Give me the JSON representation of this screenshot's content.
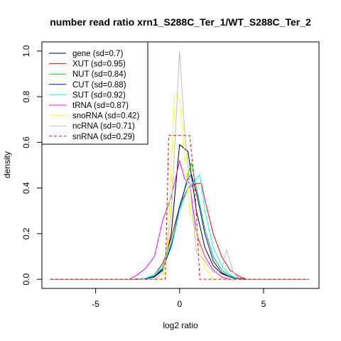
{
  "chart_data": {
    "type": "line",
    "title": "number read ratio xrn1_S288C_Ter_1/WT_S288C_Ter_2",
    "xlabel": "log2 ratio",
    "ylabel": "density",
    "xlim": [
      -8.2,
      8.3
    ],
    "ylim": [
      -0.04,
      1.04
    ],
    "xticks": [
      -5,
      0,
      5
    ],
    "yticks": [
      0.0,
      0.2,
      0.4,
      0.6,
      0.8,
      1.0
    ],
    "xtick_labels": [
      "-5",
      "0",
      "5"
    ],
    "ytick_labels": [
      "0.0",
      "0.2",
      "0.4",
      "0.6",
      "0.8",
      "1.0"
    ],
    "grid": false,
    "legend_position": "top-left",
    "series": [
      {
        "name": "gene (sd=0.7)",
        "color": "#000000",
        "dash": "solid",
        "x": [
          -7.7,
          -3.0,
          -2.0,
          -1.5,
          -1.0,
          -0.5,
          0.0,
          0.5,
          1.0,
          1.5,
          2.0,
          2.5,
          3.0,
          4.0,
          7.7
        ],
        "y": [
          0.0,
          0.0,
          0.003,
          0.01,
          0.04,
          0.2,
          0.59,
          0.56,
          0.3,
          0.14,
          0.06,
          0.025,
          0.01,
          0.0,
          0.0
        ]
      },
      {
        "name": "XUT (sd=0.95)",
        "color": "#ff0000",
        "dash": "solid",
        "x": [
          -7.7,
          -2.5,
          -2.0,
          -1.5,
          -1.0,
          -0.5,
          0.0,
          0.5,
          1.0,
          1.3,
          1.5,
          2.0,
          2.5,
          3.0,
          3.5,
          4.0,
          7.7
        ],
        "y": [
          0.0,
          0.0,
          0.005,
          0.02,
          0.07,
          0.18,
          0.32,
          0.4,
          0.42,
          0.42,
          0.35,
          0.2,
          0.1,
          0.04,
          0.015,
          0.0,
          0.0
        ]
      },
      {
        "name": "NUT (sd=0.84)",
        "color": "#00cd00",
        "dash": "solid",
        "x": [
          -7.7,
          -2.5,
          -2.0,
          -1.5,
          -1.0,
          -0.5,
          0.0,
          0.5,
          0.7,
          1.0,
          1.5,
          2.0,
          2.5,
          3.0,
          3.5,
          7.7
        ],
        "y": [
          0.0,
          0.0,
          0.005,
          0.015,
          0.05,
          0.14,
          0.3,
          0.46,
          0.51,
          0.4,
          0.22,
          0.1,
          0.04,
          0.015,
          0.0,
          0.0
        ]
      },
      {
        "name": "CUT (sd=0.88)",
        "color": "#0000ff",
        "dash": "solid",
        "x": [
          -7.7,
          -2.5,
          -2.0,
          -1.5,
          -1.0,
          -0.5,
          0.0,
          0.5,
          0.7,
          1.0,
          1.5,
          2.0,
          2.5,
          3.0,
          3.5,
          7.7
        ],
        "y": [
          0.0,
          0.0,
          0.003,
          0.012,
          0.045,
          0.15,
          0.32,
          0.44,
          0.46,
          0.38,
          0.2,
          0.08,
          0.03,
          0.01,
          0.0,
          0.0
        ]
      },
      {
        "name": "SUT (sd=0.92)",
        "color": "#00ffff",
        "dash": "solid",
        "x": [
          -7.7,
          -2.5,
          -2.0,
          -1.5,
          -1.0,
          -0.5,
          0.0,
          0.5,
          1.0,
          1.2,
          1.5,
          2.0,
          2.5,
          3.0,
          3.5,
          7.7
        ],
        "y": [
          0.0,
          0.0,
          0.005,
          0.02,
          0.06,
          0.16,
          0.3,
          0.4,
          0.44,
          0.46,
          0.3,
          0.14,
          0.06,
          0.02,
          0.0,
          0.0
        ]
      },
      {
        "name": "tRNA (sd=0.87)",
        "color": "#ff00ff",
        "dash": "solid",
        "x": [
          -7.7,
          -3.0,
          -2.5,
          -2.0,
          -1.5,
          -1.0,
          -0.5,
          0.0,
          0.3,
          0.6,
          1.0,
          1.5,
          2.0,
          2.5,
          3.0,
          7.7
        ],
        "y": [
          0.0,
          0.0,
          0.02,
          0.05,
          0.1,
          0.26,
          0.36,
          0.52,
          0.44,
          0.42,
          0.2,
          0.1,
          0.04,
          0.01,
          0.0,
          0.0
        ]
      },
      {
        "name": "snoRNA (sd=0.42)",
        "color": "#ffff00",
        "dash": "solid",
        "x": [
          -7.7,
          -1.0,
          -0.7,
          -0.3,
          0.0,
          0.3,
          0.6,
          1.0,
          1.5,
          2.0,
          7.7
        ],
        "y": [
          0.0,
          0.0,
          0.15,
          0.81,
          0.79,
          0.55,
          0.3,
          0.2,
          0.05,
          0.0,
          0.0
        ]
      },
      {
        "name": "ncRNA (sd=0.71)",
        "color": "#bebebe",
        "dash": "solid",
        "x": [
          -7.7,
          -1.5,
          -1.0,
          -0.5,
          0.0,
          0.3,
          0.6,
          1.0,
          1.5,
          2.0,
          2.5,
          2.8,
          3.2,
          3.6,
          7.7
        ],
        "y": [
          0.0,
          0.0,
          0.03,
          0.28,
          1.0,
          0.65,
          0.42,
          0.12,
          0.08,
          0.03,
          0.04,
          0.13,
          0.03,
          0.0,
          0.0
        ]
      },
      {
        "name": "snRNA (sd=0.29)",
        "color": "#ff0000",
        "dash": "dashed",
        "x": [
          -7.7,
          -0.85,
          -0.65,
          0.6,
          0.9,
          1.2,
          7.7
        ],
        "y": [
          0.0,
          0.0,
          0.63,
          0.63,
          0.42,
          0.0,
          0.0
        ]
      }
    ]
  }
}
